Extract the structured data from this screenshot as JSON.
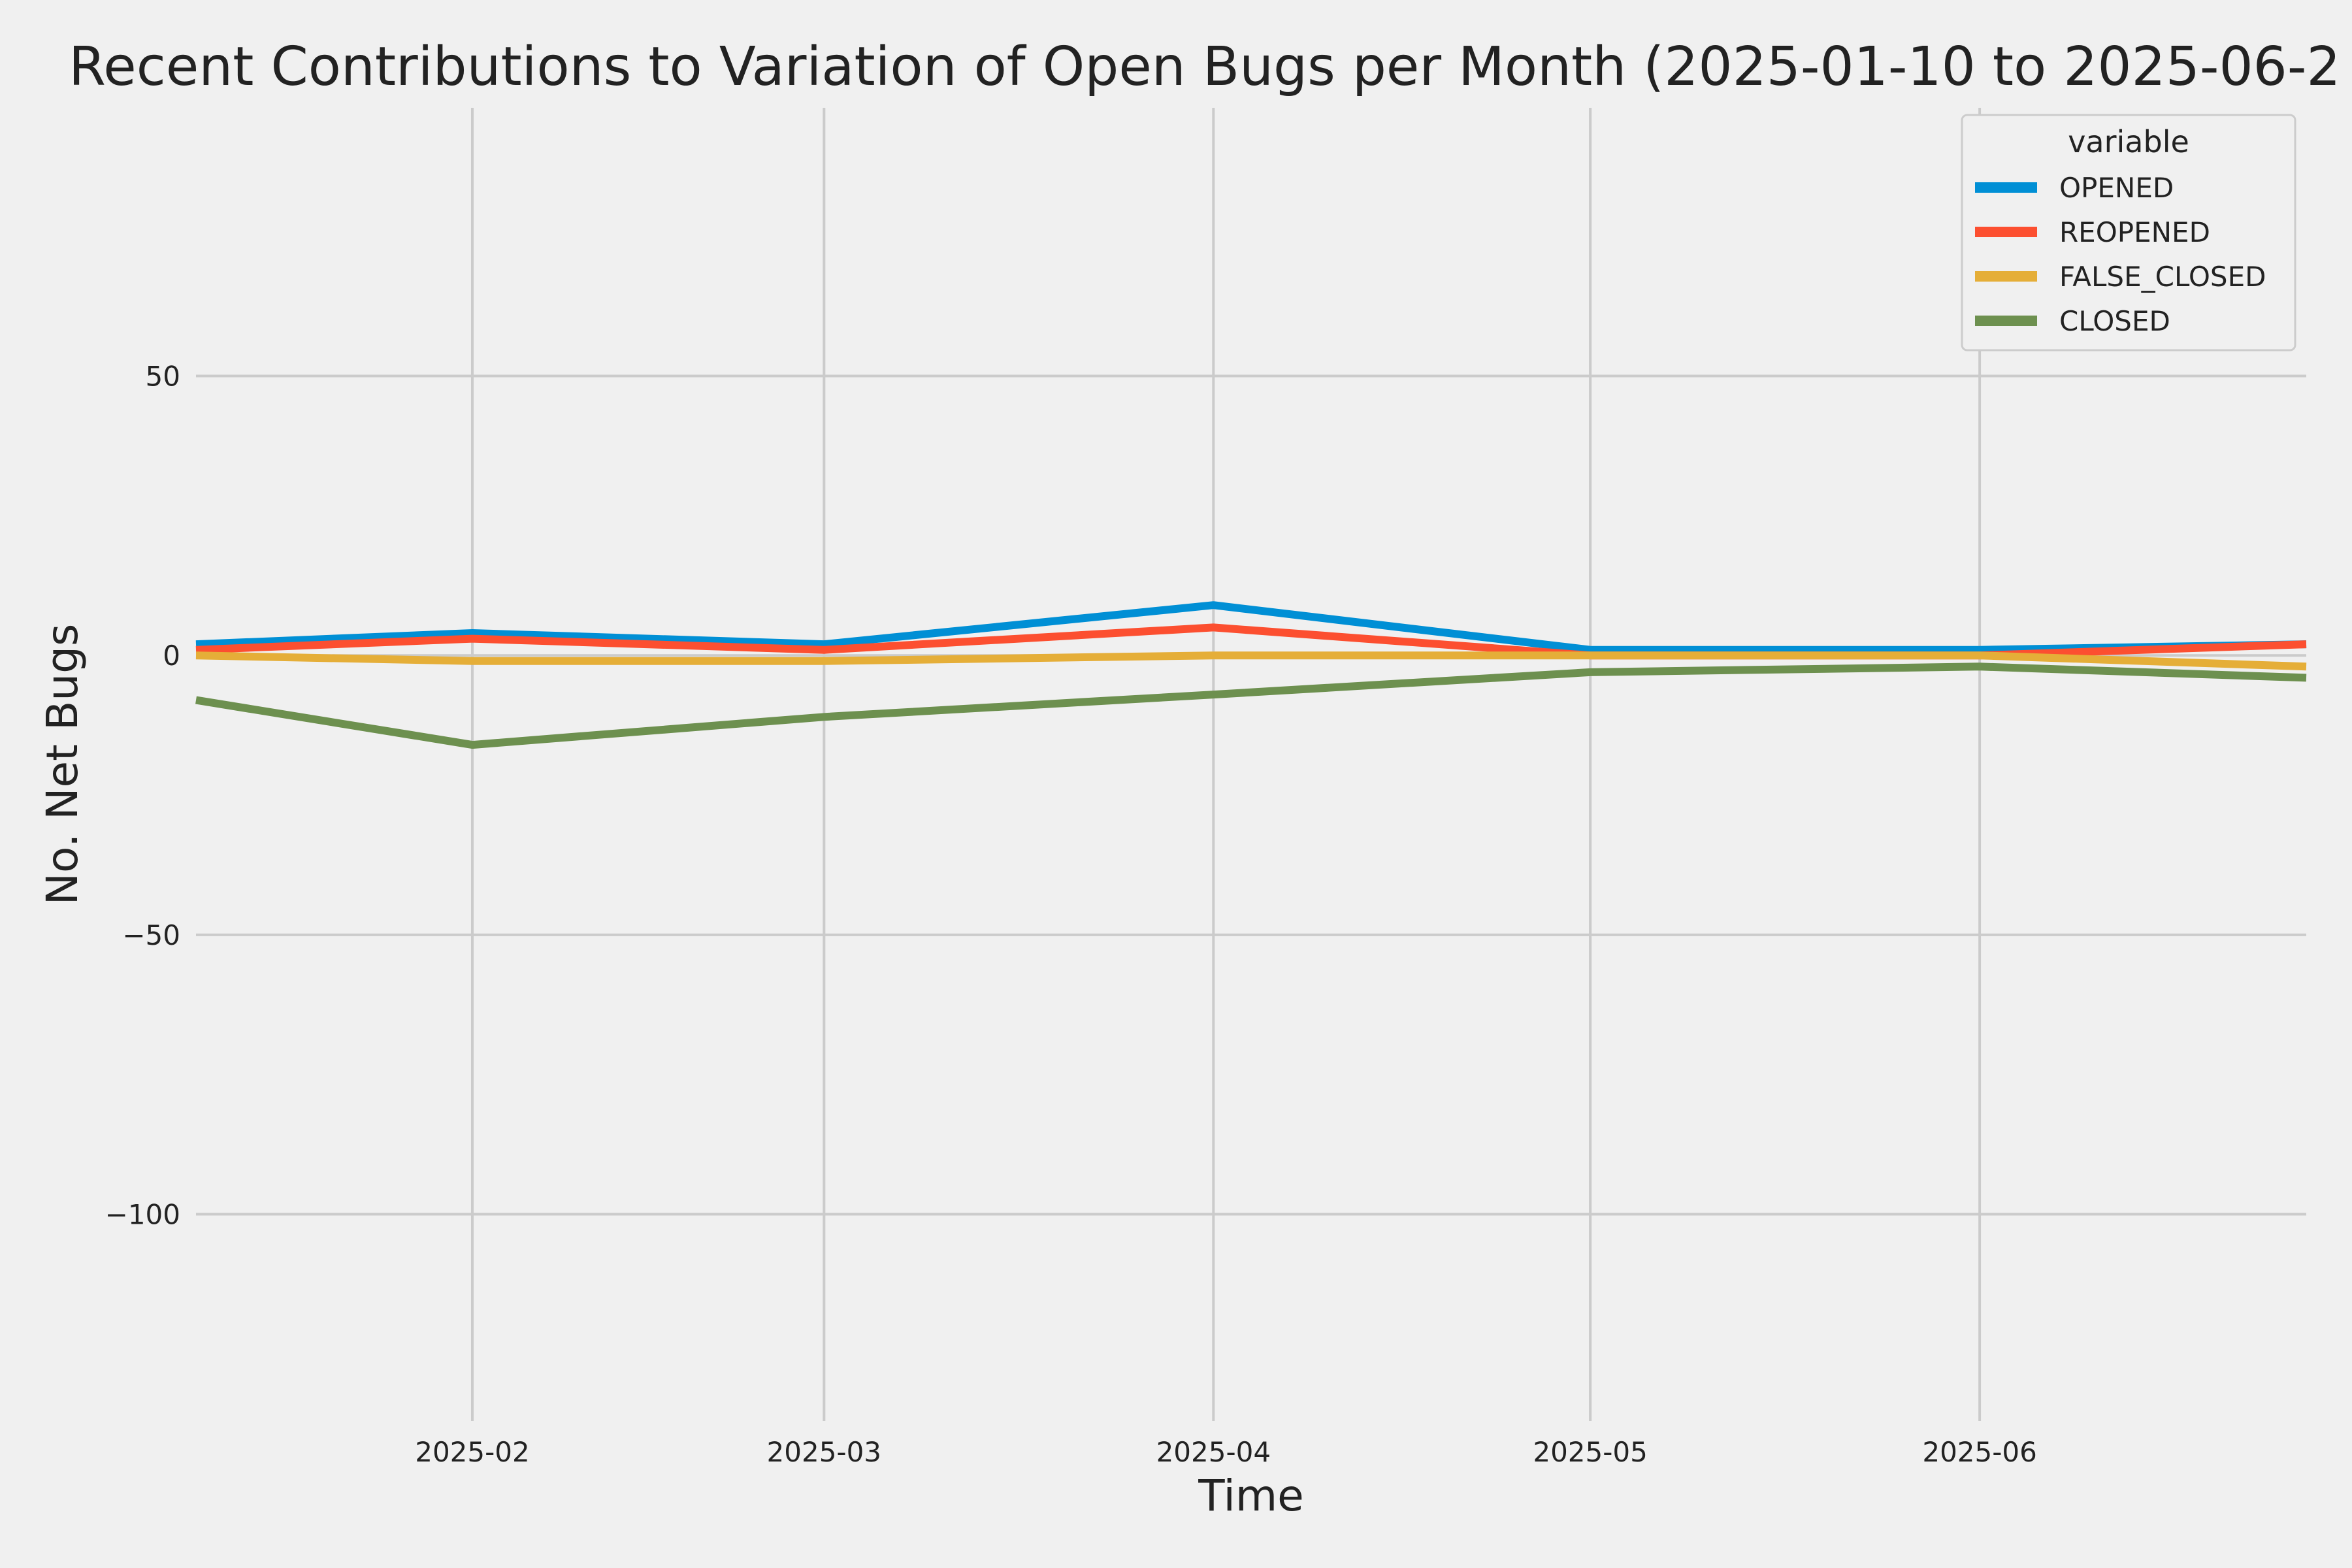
{
  "chart_data": {
    "type": "line",
    "title": "Recent Contributions to Variation of Open Bugs per Month (2025-01-10 to 2025-06-2",
    "xlabel": "Time",
    "ylabel": "No. Net Bugs",
    "x": [
      "2025-01-10",
      "2025-02-01",
      "2025-03-01",
      "2025-04-01",
      "2025-05-01",
      "2025-06-01",
      "2025-06-27"
    ],
    "x_range": [
      "2025-01-10",
      "2025-06-27"
    ],
    "x_ticks": [
      "2025-02-01",
      "2025-03-01",
      "2025-04-01",
      "2025-05-01",
      "2025-06-01"
    ],
    "x_tick_labels": [
      "2025-02",
      "2025-03",
      "2025-04",
      "2025-05",
      "2025-06"
    ],
    "ylim": [
      -137,
      98
    ],
    "y_ticks": [
      50,
      0,
      -50,
      -100
    ],
    "y_tick_labels": [
      "50",
      "0",
      "−50",
      "−100"
    ],
    "grid": true,
    "legend": {
      "title": "variable",
      "placement": "top-right"
    },
    "series": [
      {
        "name": "OPENED",
        "color": "#008fd5",
        "values": [
          2,
          4,
          2,
          9,
          1,
          1,
          2
        ]
      },
      {
        "name": "REOPENED",
        "color": "#fc4f30",
        "values": [
          1,
          3,
          1,
          5,
          0,
          0,
          2
        ]
      },
      {
        "name": "FALSE_CLOSED",
        "color": "#e5ae38",
        "values": [
          0,
          -1,
          -1,
          0,
          0,
          0,
          -2
        ]
      },
      {
        "name": "CLOSED",
        "color": "#6d904f",
        "values": [
          -8,
          -16,
          -11,
          -7,
          -3,
          -2,
          -4
        ]
      }
    ]
  }
}
